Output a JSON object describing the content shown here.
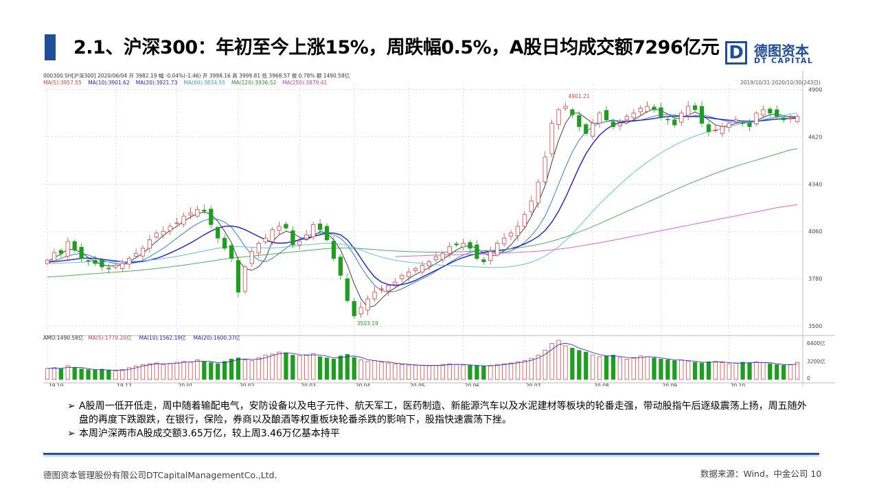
{
  "slide": {
    "title": "2.1、沪深300：年初至今上涨15%，周跌幅0.5%，A股日均成交额7296亿元",
    "logo_letter": "D",
    "logo_cn": "德图资本",
    "logo_en": "DT CAPITAL",
    "bullets": [
      "A股周一低开低走，周中随着输配电气，安防设备以及电子元件、航天军工，医药制造、新能源汽车以及水泥建材等板块的轮番走强，带动股指午后逐级震荡上扬，周五随外盘的再度下跌跟跌，在银行，保险，券商以及酿酒等权重板块轮番杀跌的影响下，股指快速震荡下挫。",
      "本周沪深两市A股成交额3.65万亿，较上周3.46万亿基本持平"
    ],
    "bullet_marker": "➢",
    "footer_left": "德图资本管理股份有限公司DTCapitalManagementCo.,Ltd.",
    "footer_right": "数据来源：Wind，中金公司 10"
  },
  "chart_info": {
    "info_line": "000300.SH[沪深300]   2020/06/04   开 3982.19   幅 -0.04%(-1.46)   开 3998.16   高 3999.81   低 3968.57   振 0.78%   额 1490.58亿",
    "ma_line": [
      "MA(5):3957.55",
      "MA(10):3901.62",
      "MA(20):3921.73",
      "MA(60):3834.55",
      "MA(120):3936.52",
      "MA(250):3879.41"
    ],
    "range_label": "2019/10/31-2020/10/30(243日)",
    "vol_line": [
      "AMO:1490.58亿",
      "MA(5):1779.20亿",
      "MA(10):1562.19亿",
      "MA(20):1600.37亿"
    ],
    "max_label": "4901.21",
    "min_label": "3503.19"
  },
  "chart_data": {
    "type": "candlestick",
    "title": "000300.SH[沪深300]",
    "date_range": "2019/10/31-2020/10/30",
    "ylim": [
      3460,
      4930
    ],
    "y_ticks": [
      4900,
      4620,
      4340,
      4060,
      3780,
      3500
    ],
    "vol_ticks": [
      "6400亿",
      "3200亿",
      "0"
    ],
    "x_ticks": [
      "19.10",
      "19.12",
      "20.01",
      "20.02",
      "20.03",
      "20.04",
      "20.05",
      "20.06",
      "20.07",
      "20.08",
      "20.09",
      "20.10"
    ],
    "close_path": [
      3890,
      3935,
      3930,
      4000,
      3950,
      3900,
      3885,
      3870,
      3850,
      3840,
      3860,
      3870,
      3900,
      3930,
      3960,
      4010,
      4050,
      4060,
      4090,
      4110,
      4150,
      4170,
      4190,
      4180,
      4100,
      4020,
      3960,
      3900,
      3700,
      3850,
      3940,
      3990,
      4020,
      4070,
      4090,
      4080,
      3980,
      4000,
      4040,
      4100,
      4070,
      4010,
      3900,
      3800,
      3650,
      3560,
      3610,
      3660,
      3700,
      3720,
      3740,
      3760,
      3800,
      3820,
      3840,
      3860,
      3880,
      3910,
      3930,
      3970,
      3980,
      3990,
      3960,
      3900,
      3880,
      3940,
      3990,
      4020,
      4050,
      4090,
      4160,
      4240,
      4350,
      4500,
      4700,
      4780,
      4800,
      4750,
      4680,
      4640,
      4700,
      4760,
      4720,
      4680,
      4700,
      4740,
      4760,
      4790,
      4800,
      4780,
      4740,
      4720,
      4690,
      4760,
      4800,
      4780,
      4700,
      4650,
      4660,
      4680,
      4700,
      4720,
      4700,
      4680,
      4760,
      4780,
      4760,
      4740,
      4720,
      4730,
      4740
    ],
    "series": [
      {
        "name": "MA(5)",
        "color": "#404040",
        "values": [
          3880,
          3905,
          3925,
          3955,
          3950,
          3935,
          3905,
          3880,
          3862,
          3855,
          3856,
          3864,
          3880,
          3905,
          3930,
          3965,
          4000,
          4035,
          4065,
          4090,
          4120,
          4145,
          4165,
          4175,
          4160,
          4120,
          4060,
          3995,
          3890,
          3840,
          3830,
          3850,
          3900,
          4000,
          4040,
          4060,
          4050,
          4025,
          4010,
          4030,
          4060,
          4050,
          4010,
          3950,
          3860,
          3750,
          3660,
          3610,
          3620,
          3660,
          3700,
          3725,
          3750,
          3780,
          3805,
          3825,
          3845,
          3870,
          3895,
          3920,
          3950,
          3970,
          3975,
          3960,
          3930,
          3915,
          3920,
          3945,
          3980,
          4030,
          4080,
          4150,
          4230,
          4330,
          4470,
          4600,
          4700,
          4760,
          4760,
          4730,
          4700,
          4700,
          4710,
          4720,
          4705,
          4700,
          4720,
          4745,
          4770,
          4785,
          4775,
          4755,
          4730,
          4730,
          4750,
          4765,
          4750,
          4720,
          4690,
          4680,
          4685,
          4700,
          4705,
          4700,
          4715,
          4735,
          4750,
          4755,
          4745,
          4735,
          4735
        ]
      },
      {
        "name": "MA(10)",
        "color": "#2f7fd6",
        "values": [
          3870,
          3885,
          3900,
          3915,
          3925,
          3930,
          3920,
          3905,
          3890,
          3878,
          3870,
          3866,
          3868,
          3876,
          3890,
          3910,
          3935,
          3960,
          3990,
          4020,
          4050,
          4080,
          4105,
          4125,
          4135,
          4132,
          4115,
          4085,
          4030,
          3970,
          3920,
          3890,
          3880,
          3900,
          3930,
          3960,
          3990,
          4015,
          4030,
          4045,
          4050,
          4050,
          4040,
          4020,
          3980,
          3920,
          3850,
          3790,
          3740,
          3710,
          3700,
          3705,
          3720,
          3740,
          3760,
          3780,
          3800,
          3825,
          3850,
          3875,
          3900,
          3920,
          3935,
          3945,
          3945,
          3940,
          3935,
          3935,
          3945,
          3965,
          3995,
          4035,
          4085,
          4150,
          4240,
          4340,
          4440,
          4530,
          4600,
          4650,
          4680,
          4700,
          4710,
          4715,
          4715,
          4712,
          4712,
          4718,
          4730,
          4742,
          4750,
          4752,
          4748,
          4742,
          4740,
          4745,
          4748,
          4742,
          4730,
          4718,
          4710,
          4705,
          4705,
          4705,
          4710,
          4718,
          4728,
          4736,
          4740,
          4740,
          4740
        ]
      },
      {
        "name": "MA(20)",
        "color": "#1a1ad6",
        "values": [
          3880,
          3882,
          3885,
          3890,
          3895,
          3900,
          3902,
          3900,
          3895,
          3890,
          3885,
          3880,
          3878,
          3878,
          3882,
          3890,
          3900,
          3915,
          3932,
          3950,
          3970,
          3992,
          4015,
          4040,
          4062,
          4080,
          4090,
          4092,
          4085,
          4070,
          4050,
          4030,
          4010,
          3995,
          3990,
          3992,
          4000,
          4010,
          4020,
          4030,
          4040,
          4050,
          4050,
          4040,
          4010,
          3960,
          3900,
          3840,
          3790,
          3760,
          3745,
          3740,
          3745,
          3755,
          3770,
          3790,
          3810,
          3830,
          3850,
          3870,
          3890,
          3905,
          3918,
          3928,
          3935,
          3940,
          3945,
          3950,
          3958,
          3970,
          3985,
          4005,
          4030,
          4065,
          4115,
          4180,
          4260,
          4350,
          4440,
          4520,
          4580,
          4630,
          4665,
          4690,
          4705,
          4712,
          4715,
          4718,
          4722,
          4728,
          4735,
          4740,
          4742,
          4742,
          4740,
          4740,
          4738,
          4733,
          4727,
          4722,
          4718,
          4715,
          4713,
          4712,
          4713,
          4716,
          4720,
          4724,
          4727,
          4728,
          4730
        ]
      },
      {
        "name": "MA(60)",
        "color": "#5cc4e8",
        "values": [
          3870,
          3870,
          3872,
          3874,
          3876,
          3878,
          3880,
          3880,
          3880,
          3880,
          3880,
          3880,
          3882,
          3884,
          3886,
          3890,
          3894,
          3900,
          3906,
          3912,
          3920,
          3928,
          3936,
          3944,
          3952,
          3960,
          3966,
          3970,
          3970,
          3968,
          3966,
          3964,
          3962,
          3962,
          3964,
          3968,
          3972,
          3976,
          3980,
          3984,
          3988,
          3990,
          3990,
          3986,
          3978,
          3966,
          3950,
          3934,
          3920,
          3908,
          3898,
          3890,
          3884,
          3878,
          3874,
          3870,
          3866,
          3862,
          3860,
          3858,
          3856,
          3854,
          3852,
          3850,
          3848,
          3846,
          3846,
          3848,
          3852,
          3858,
          3866,
          3878,
          3894,
          3914,
          3940,
          3970,
          4005,
          4045,
          4090,
          4135,
          4180,
          4222,
          4262,
          4300,
          4338,
          4374,
          4408,
          4440,
          4470,
          4498,
          4524,
          4548,
          4570,
          4590,
          4608,
          4624,
          4638,
          4650,
          4660,
          4670,
          4680,
          4690,
          4698,
          4706,
          4714,
          4722,
          4730,
          4738,
          4746,
          4754,
          4760
        ]
      },
      {
        "name": "MA(120)",
        "color": "#4caf50",
        "values": [
          3790,
          3792,
          3795,
          3798,
          3801,
          3804,
          3807,
          3810,
          3813,
          3816,
          3819,
          3822,
          3825,
          3828,
          3832,
          3836,
          3840,
          3845,
          3850,
          3855,
          3860,
          3866,
          3872,
          3878,
          3884,
          3890,
          3896,
          3902,
          3906,
          3910,
          3914,
          3918,
          3922,
          3926,
          3930,
          3934,
          3938,
          3942,
          3946,
          3950,
          3954,
          3958,
          3960,
          3962,
          3962,
          3960,
          3958,
          3955,
          3952,
          3949,
          3946,
          3944,
          3942,
          3940,
          3939,
          3938,
          3937,
          3937,
          3937,
          3938,
          3939,
          3940,
          3942,
          3944,
          3946,
          3948,
          3950,
          3953,
          3957,
          3962,
          3968,
          3975,
          3983,
          3992,
          4002,
          4014,
          4027,
          4041,
          4056,
          4072,
          4089,
          4106,
          4124,
          4142,
          4160,
          4178,
          4196,
          4214,
          4232,
          4250,
          4268,
          4286,
          4304,
          4322,
          4340,
          4356,
          4372,
          4388,
          4404,
          4418,
          4432,
          4446,
          4458,
          4470,
          4482,
          4494,
          4506,
          4518,
          4530,
          4542,
          4550
        ]
      },
      {
        "name": "MA(250)",
        "color": "#e060e0",
        "values": [
          null,
          null,
          null,
          null,
          null,
          null,
          null,
          null,
          null,
          null,
          null,
          null,
          null,
          null,
          null,
          null,
          null,
          null,
          null,
          null,
          null,
          null,
          null,
          null,
          null,
          null,
          null,
          null,
          null,
          null,
          null,
          null,
          null,
          null,
          null,
          null,
          null,
          null,
          null,
          null,
          null,
          null,
          null,
          null,
          null,
          null,
          null,
          null,
          null,
          null,
          null,
          3910,
          3912,
          3913,
          3915,
          3916,
          3918,
          3919,
          3920,
          3921,
          3922,
          3923,
          3924,
          3925,
          3926,
          3928,
          3930,
          3932,
          3934,
          3936,
          3938,
          3940,
          3943,
          3946,
          3950,
          3955,
          3960,
          3966,
          3972,
          3979,
          3986,
          3993,
          4000,
          4008,
          4016,
          4024,
          4032,
          4040,
          4048,
          4056,
          4064,
          4072,
          4080,
          4088,
          4096,
          4104,
          4112,
          4120,
          4128,
          4136,
          4144,
          4152,
          4160,
          4168,
          4176,
          4184,
          4192,
          4200,
          4206,
          4212,
          4218
        ]
      }
    ],
    "volume_relative": [
      0.28,
      0.3,
      0.27,
      0.35,
      0.3,
      0.27,
      0.25,
      0.24,
      0.26,
      0.23,
      0.22,
      0.25,
      0.3,
      0.34,
      0.38,
      0.4,
      0.42,
      0.38,
      0.41,
      0.44,
      0.46,
      0.44,
      0.5,
      0.45,
      0.43,
      0.4,
      0.46,
      0.52,
      0.55,
      0.5,
      0.48,
      0.56,
      0.62,
      0.65,
      0.7,
      0.68,
      0.62,
      0.6,
      0.63,
      0.66,
      0.58,
      0.55,
      0.52,
      0.6,
      0.64,
      0.56,
      0.5,
      0.46,
      0.48,
      0.44,
      0.42,
      0.4,
      0.38,
      0.37,
      0.36,
      0.36,
      0.35,
      0.36,
      0.38,
      0.4,
      0.38,
      0.37,
      0.36,
      0.35,
      0.34,
      0.36,
      0.38,
      0.4,
      0.42,
      0.45,
      0.48,
      0.54,
      0.62,
      0.75,
      0.92,
      1.0,
      0.86,
      0.8,
      0.74,
      0.7,
      0.62,
      0.58,
      0.6,
      0.62,
      0.55,
      0.52,
      0.56,
      0.6,
      0.58,
      0.55,
      0.52,
      0.5,
      0.48,
      0.5,
      0.46,
      0.44,
      0.42,
      0.45,
      0.46,
      0.43,
      0.4,
      0.42,
      0.44,
      0.42,
      0.45,
      0.43,
      0.4,
      0.38,
      0.36,
      0.38,
      0.44
    ],
    "colors": {
      "up": "#e04040",
      "down": "#1e9e1e",
      "grid": "#c8c8c8"
    }
  }
}
